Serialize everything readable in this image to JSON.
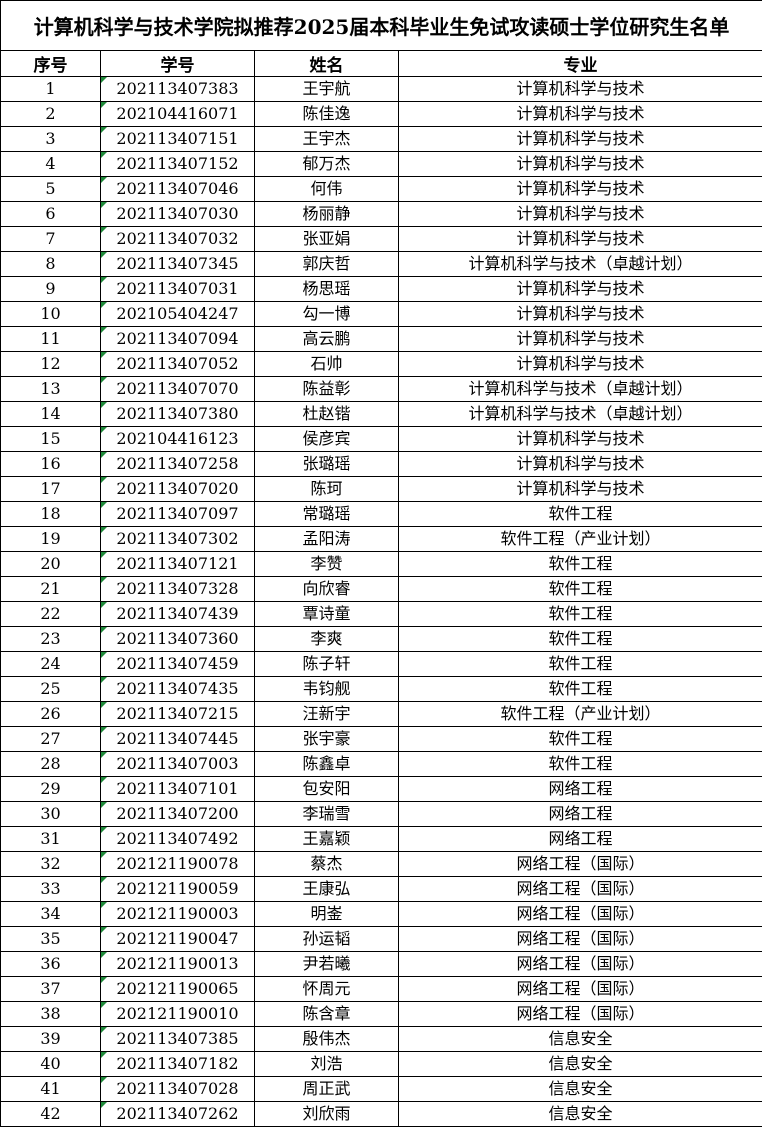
{
  "title": "计算机科学与技术学院拟推荐2025届本科毕业生免试攻读硕士学位研究生名单",
  "table": {
    "columns": [
      "序号",
      "学号",
      "姓名",
      "专业"
    ],
    "rows": [
      [
        "1",
        "202113407383",
        "王宇航",
        "计算机科学与技术"
      ],
      [
        "2",
        "202104416071",
        "陈佳逸",
        "计算机科学与技术"
      ],
      [
        "3",
        "202113407151",
        "王宇杰",
        "计算机科学与技术"
      ],
      [
        "4",
        "202113407152",
        "郁万杰",
        "计算机科学与技术"
      ],
      [
        "5",
        "202113407046",
        "何伟",
        "计算机科学与技术"
      ],
      [
        "6",
        "202113407030",
        "杨丽静",
        "计算机科学与技术"
      ],
      [
        "7",
        "202113407032",
        "张亚娟",
        "计算机科学与技术"
      ],
      [
        "8",
        "202113407345",
        "郭庆哲",
        "计算机科学与技术（卓越计划）"
      ],
      [
        "9",
        "202113407031",
        "杨思瑶",
        "计算机科学与技术"
      ],
      [
        "10",
        "202105404247",
        "勾一博",
        "计算机科学与技术"
      ],
      [
        "11",
        "202113407094",
        "高云鹏",
        "计算机科学与技术"
      ],
      [
        "12",
        "202113407052",
        "石帅",
        "计算机科学与技术"
      ],
      [
        "13",
        "202113407070",
        "陈益彰",
        "计算机科学与技术（卓越计划）"
      ],
      [
        "14",
        "202113407380",
        "杜赵锴",
        "计算机科学与技术（卓越计划）"
      ],
      [
        "15",
        "202104416123",
        "侯彦宾",
        "计算机科学与技术"
      ],
      [
        "16",
        "202113407258",
        "张璐瑶",
        "计算机科学与技术"
      ],
      [
        "17",
        "202113407020",
        "陈珂",
        "计算机科学与技术"
      ],
      [
        "18",
        "202113407097",
        "常璐瑶",
        "软件工程"
      ],
      [
        "19",
        "202113407302",
        "孟阳涛",
        "软件工程（产业计划）"
      ],
      [
        "20",
        "202113407121",
        "李赞",
        "软件工程"
      ],
      [
        "21",
        "202113407328",
        "向欣睿",
        "软件工程"
      ],
      [
        "22",
        "202113407439",
        "覃诗童",
        "软件工程"
      ],
      [
        "23",
        "202113407360",
        "李爽",
        "软件工程"
      ],
      [
        "24",
        "202113407459",
        "陈子轩",
        "软件工程"
      ],
      [
        "25",
        "202113407435",
        "韦钧舰",
        "软件工程"
      ],
      [
        "26",
        "202113407215",
        "汪新宇",
        "软件工程（产业计划）"
      ],
      [
        "27",
        "202113407445",
        "张宇豪",
        "软件工程"
      ],
      [
        "28",
        "202113407003",
        "陈鑫卓",
        "软件工程"
      ],
      [
        "29",
        "202113407101",
        "包安阳",
        "网络工程"
      ],
      [
        "30",
        "202113407200",
        "李瑞雪",
        "网络工程"
      ],
      [
        "31",
        "202113407492",
        "王嘉颖",
        "网络工程"
      ],
      [
        "32",
        "202121190078",
        "蔡杰",
        "网络工程（国际）"
      ],
      [
        "33",
        "202121190059",
        "王康弘",
        "网络工程（国际）"
      ],
      [
        "34",
        "202121190003",
        "明崟",
        "网络工程（国际）"
      ],
      [
        "35",
        "202121190047",
        "孙运韬",
        "网络工程（国际）"
      ],
      [
        "36",
        "202121190013",
        "尹若曦",
        "网络工程（国际）"
      ],
      [
        "37",
        "202121190065",
        "怀周元",
        "网络工程（国际）"
      ],
      [
        "38",
        "202121190010",
        "陈含章",
        "网络工程（国际）"
      ],
      [
        "39",
        "202113407385",
        "殷伟杰",
        "信息安全"
      ],
      [
        "40",
        "202113407182",
        "刘浩",
        "信息安全"
      ],
      [
        "41",
        "202113407028",
        "周正武",
        "信息安全"
      ],
      [
        "42",
        "202113407262",
        "刘欣雨",
        "信息安全"
      ]
    ]
  }
}
